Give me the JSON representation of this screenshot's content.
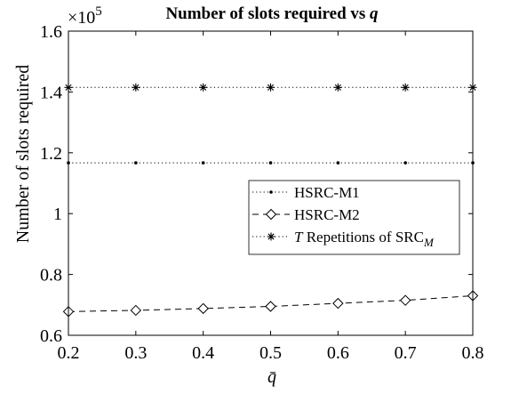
{
  "chart_data": {
    "type": "line",
    "title": "Number of slots required vs q̄",
    "xlabel": "q̄",
    "ylabel": "Number of slots required",
    "y_exponent_label": "×10",
    "y_exponent_power": "5",
    "xlim": [
      0.2,
      0.8
    ],
    "ylim": [
      0.6,
      1.6
    ],
    "x_ticks": [
      0.2,
      0.3,
      0.4,
      0.5,
      0.6,
      0.7,
      0.8
    ],
    "x_tick_labels": [
      "0.2",
      "0.3",
      "0.4",
      "0.5",
      "0.6",
      "0.7",
      "0.8"
    ],
    "y_ticks": [
      0.6,
      0.8,
      1.0,
      1.2,
      1.4,
      1.6
    ],
    "y_tick_labels": [
      "0.6",
      "0.8",
      "1",
      "1.2",
      "1.4",
      "1.6"
    ],
    "grid": false,
    "legend_position": "center-right",
    "x": [
      0.2,
      0.3,
      0.4,
      0.5,
      0.6,
      0.7,
      0.8
    ],
    "series": [
      {
        "name": "HSRC-M1",
        "values": [
          1.167,
          1.167,
          1.167,
          1.167,
          1.167,
          1.167,
          1.167
        ],
        "line_style": "dotted",
        "marker": "dot",
        "color": "#000000"
      },
      {
        "name": "HSRC-M2",
        "values": [
          0.678,
          0.682,
          0.688,
          0.695,
          0.705,
          0.715,
          0.73
        ],
        "line_style": "dashed",
        "marker": "diamond",
        "color": "#000000"
      },
      {
        "name": "T Repetitions of SRC_M",
        "name_parts": {
          "italic": "T",
          "text": " Repetitions of SRC",
          "subscript": "M"
        },
        "values": [
          1.415,
          1.415,
          1.415,
          1.415,
          1.415,
          1.415,
          1.415
        ],
        "line_style": "dotted",
        "marker": "asterisk",
        "color": "#000000"
      }
    ]
  }
}
